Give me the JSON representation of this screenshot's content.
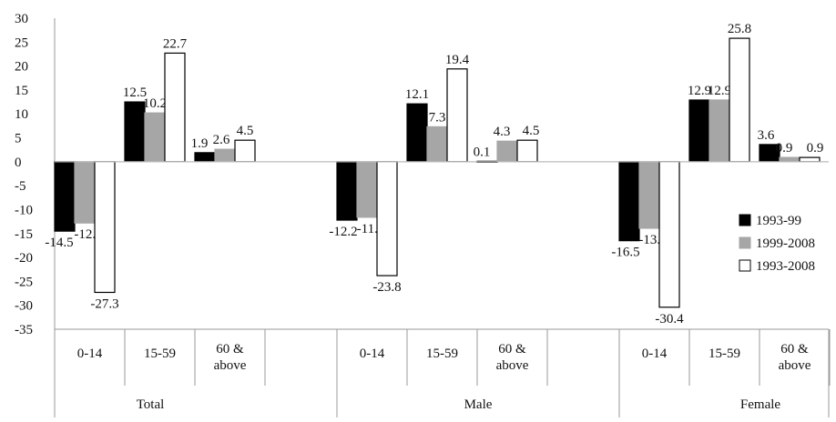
{
  "chart_data": {
    "type": "bar",
    "ylim": [
      -35,
      30
    ],
    "yticks": [
      30,
      25,
      20,
      15,
      10,
      5,
      0,
      -5,
      -10,
      -15,
      -20,
      -25,
      -30,
      -35
    ],
    "groups": [
      {
        "name": "Total",
        "categories": [
          "0-14",
          "15-59",
          "60 &|above"
        ]
      },
      {
        "name": "Male",
        "categories": [
          "0-14",
          "15-59",
          "60 &|above"
        ]
      },
      {
        "name": "Female",
        "categories": [
          "0-14",
          "15-59",
          "60 &|above"
        ]
      }
    ],
    "series": [
      {
        "name": "1993-99",
        "color": "#000000",
        "stroke": "#000000",
        "values": [
          -14.5,
          12.5,
          1.9,
          -12.2,
          12.1,
          0.1,
          -16.5,
          12.9,
          3.6
        ],
        "labels": [
          "-14.5",
          "12.5",
          "1.9",
          "-12.2",
          "12.1",
          "0.1",
          "-16.5",
          "12.9",
          "3.6"
        ]
      },
      {
        "name": "1999-2008",
        "color": "#a6a6a6",
        "stroke": "#a6a6a6",
        "values": [
          -12.8,
          10.2,
          2.6,
          -11.6,
          7.3,
          4.3,
          -13.9,
          12.9,
          0.9
        ],
        "labels": [
          "-12.8",
          "10.2",
          "2.6",
          "-11.6",
          "7.3",
          "4.3",
          "-13.9",
          "12.9",
          "0.9"
        ]
      },
      {
        "name": "1993-2008",
        "color": "#ffffff",
        "stroke": "#000000",
        "values": [
          -27.3,
          22.7,
          4.5,
          -23.8,
          19.4,
          4.5,
          -30.4,
          25.8,
          0.9
        ],
        "labels": [
          "-27.3",
          "22.7",
          "4.5",
          "-23.8",
          "19.4",
          "4.5",
          "-30.4",
          "25.8",
          "0.9"
        ]
      }
    ],
    "legend_position": "right",
    "grid": false
  }
}
